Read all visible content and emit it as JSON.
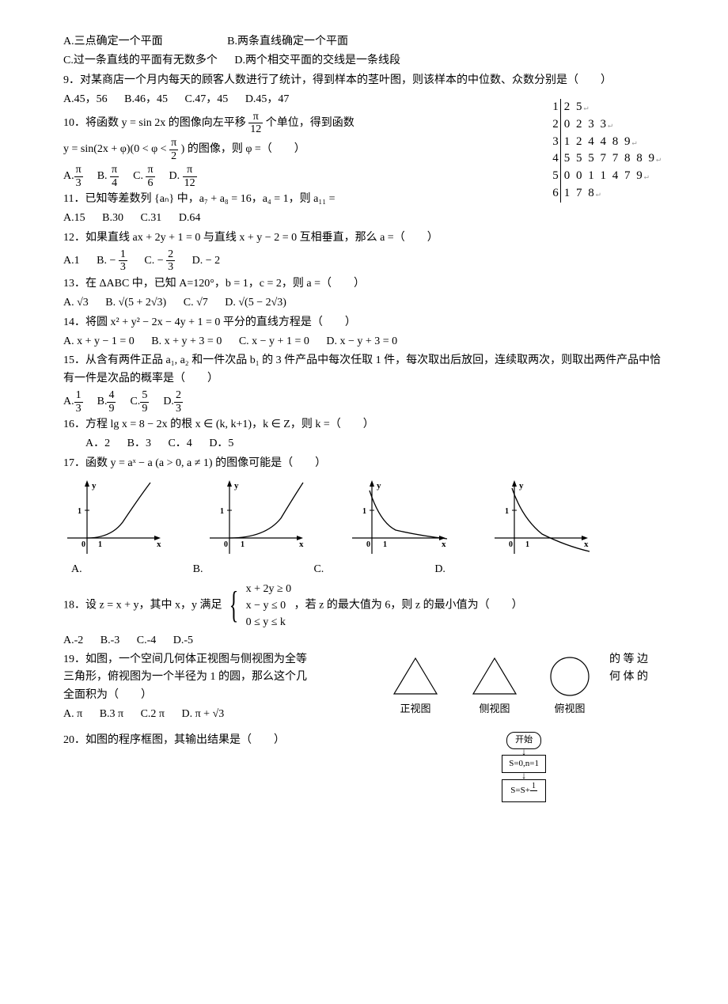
{
  "q8_opts": {
    "A": "A.三点确定一个平面",
    "B": "B.两条直线确定一个平面",
    "C": "C.过一条直线的平面有无数多个",
    "D": "D.两个相交平面的交线是一条线段"
  },
  "q9": {
    "stem": "9．对某商店一个月内每天的顾客人数进行了统计，得到样本的茎叶图，则该样本的中位数、众数分别是（　　）",
    "opts": {
      "A": "A.45，56",
      "B": "B.46，45",
      "C": "C.47，45",
      "D": "D.45，47"
    }
  },
  "stemleaf": [
    {
      "stem": "1",
      "leaves": "2 5"
    },
    {
      "stem": "2",
      "leaves": "0 2 3 3"
    },
    {
      "stem": "3",
      "leaves": "1 2 4 4 8 9"
    },
    {
      "stem": "4",
      "leaves": "5 5 5 7 7 8 8 9"
    },
    {
      "stem": "5",
      "leaves": "0 0 1 1 4 7 9"
    },
    {
      "stem": "6",
      "leaves": "1 7 8"
    }
  ],
  "q10": {
    "stem_a": "10．将函数 y = sin 2x 的图像向左平移 ",
    "stem_b": " 个单位，得到函数",
    "line2_a": "y = sin(2x + φ)(0 < φ < ",
    "line2_b": ") 的图像，则 φ =（　　）",
    "frac1": {
      "num": "π",
      "den": "12"
    },
    "frac2": {
      "num": "π",
      "den": "2"
    },
    "opts": {
      "A": {
        "label": "A.",
        "num": "π",
        "den": "3"
      },
      "B": {
        "label": "B. ",
        "num": "π",
        "den": "4"
      },
      "C": {
        "label": "C. ",
        "num": "π",
        "den": "6"
      },
      "D": {
        "label": "D. ",
        "num": "π",
        "den": "12"
      }
    }
  },
  "q11": {
    "stem": "11．已知等差数列 {aₙ} 中，a₇ + a₈ = 16，a₄ = 1，则 a₁₁ =",
    "opts": {
      "A": "A.15",
      "B": "B.30",
      "C": "C.31",
      "D": "D.64"
    }
  },
  "q12": {
    "stem": "12．如果直线 ax + 2y + 1 = 0 与直线 x + y − 2 = 0 互相垂直，那么 a =（　　）",
    "opts": {
      "A": "A.1",
      "B": {
        "label": "B. −",
        "num": "1",
        "den": "3"
      },
      "C": {
        "label": "C.  −",
        "num": "2",
        "den": "3"
      },
      "D": "D.  − 2"
    }
  },
  "q13": {
    "stem": "13．在 ΔABC 中，已知 A=120°，b = 1，c = 2，则 a =（　　）",
    "opts": {
      "A": "A. √3",
      "B": "B. √(5 + 2√3)",
      "C": "C. √7",
      "D": "D.  √(5 − 2√3)"
    }
  },
  "q14": {
    "stem": "14．将圆 x² + y² − 2x − 4y + 1 = 0 平分的直线方程是（　　）",
    "opts": {
      "A": "A. x + y − 1 = 0",
      "B": "B.  x + y + 3 = 0",
      "C": "C.  x − y + 1 = 0",
      "D": "D.  x − y + 3 = 0"
    }
  },
  "q15": {
    "stem": "15．从含有两件正品 a₁, a₂ 和一件次品 b₁ 的 3 件产品中每次任取 1 件，每次取出后放回，连续取两次，则取出两件产品中恰有一件是次品的概率是（　　）",
    "opts": {
      "A": {
        "label": "A.",
        "num": "1",
        "den": "3"
      },
      "B": {
        "label": "B.",
        "num": "4",
        "den": "9"
      },
      "C": {
        "label": "C.",
        "num": "5",
        "den": "9"
      },
      "D": {
        "label": "D.",
        "num": "2",
        "den": "3"
      }
    }
  },
  "q16": {
    "stem": "16．方程 lg x = 8 − 2x 的根 x ∈ (k, k+1)，k ∈ Z，则 k =（　　）",
    "opts": {
      "A": "A．2",
      "B": "B．3",
      "C": "C．4",
      "D": "D．5"
    }
  },
  "q17": {
    "stem": "17．函数 y = aˣ − a (a > 0, a ≠ 1) 的图像可能是（　　）",
    "labels": {
      "A": "A.",
      "B": "B.",
      "C": "C.",
      "D": "D."
    },
    "axis": {
      "stroke": "#000000",
      "width": 1.2
    },
    "curve": {
      "stroke": "#000000",
      "width": 1.3
    }
  },
  "q18": {
    "stem_a": "18．设 z = x + y，其中 x，y 满足 ",
    "stem_b": "，若 z 的最大值为 6，则 z 的最小值为（　　）",
    "constraints": [
      "x + 2y ≥ 0",
      "x − y ≤ 0",
      "0 ≤ y ≤ k"
    ],
    "opts": {
      "A": "A.-2",
      "B": "B.-3",
      "C": "C.-4",
      "D": "D.-5"
    }
  },
  "q19": {
    "stem_l1": "19．如图，一个空间几何体正视图与侧视图为全等",
    "stem_l2": "三角形，俯视图为一个半径为 1 的圆，那么这个几",
    "stem_l3": "全面积为（　　）",
    "right_l1": "的 等 边",
    "right_l2": "何 体 的",
    "opts": {
      "A": "A. π",
      "B": "B.3 π",
      "C": "C.2 π",
      "D": "D.   π + √3"
    },
    "views": {
      "front": "正视图",
      "side": "侧视图",
      "top": "俯视图"
    },
    "shape": {
      "stroke": "#000000",
      "width": 1.2
    }
  },
  "q20": {
    "stem": "20．如图的程序框图，其输出结果是（　　）",
    "fc": {
      "start": "开始",
      "init": "S=0,n=1",
      "step_a": "S=S+",
      "step_frac": "1"
    }
  }
}
